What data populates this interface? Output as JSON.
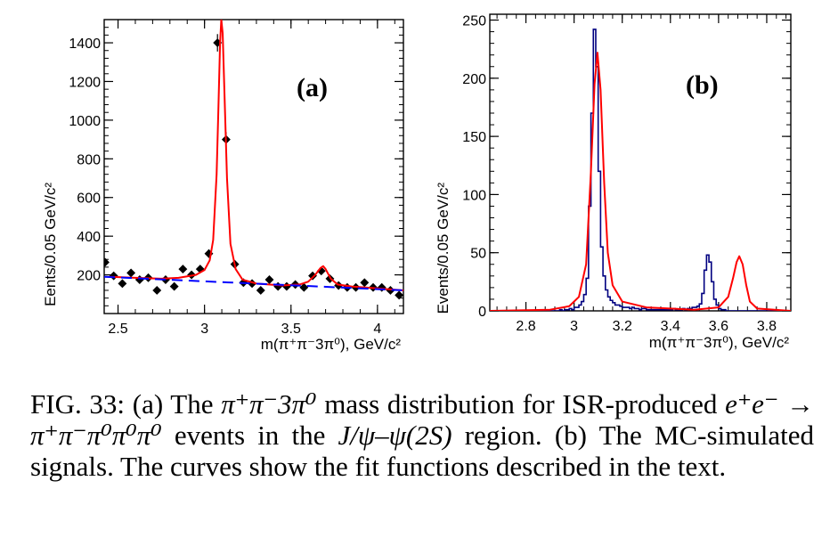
{
  "figure": {
    "panels": [
      {
        "tag": "(a)",
        "ylabel": "Eents/0.05 GeV/c²",
        "xlabel": "m(π⁺π⁻3π⁰), GeV/c²"
      },
      {
        "tag": "(b)",
        "ylabel": "Events/0.05 GeV/c²",
        "xlabel": "m(π⁺π⁻3π⁰), GeV/c²"
      }
    ]
  },
  "chart_data": [
    {
      "type": "scatter",
      "panel": "(a)",
      "title": "(a)",
      "xlabel": "m(π⁺π⁻3π⁰), GeV/c²",
      "ylabel": "Eents/0.05 GeV/c²",
      "xlim": [
        2.42,
        4.15
      ],
      "ylim": [
        0,
        1520
      ],
      "x_ticks": [
        2.5,
        3,
        3.5,
        4
      ],
      "y_ticks": [
        200,
        400,
        600,
        800,
        1000,
        1200,
        1400
      ],
      "grid": false,
      "series": [
        {
          "kind": "points_with_errors",
          "color": "#000000",
          "x": [
            2.425,
            2.475,
            2.525,
            2.575,
            2.625,
            2.675,
            2.725,
            2.775,
            2.825,
            2.875,
            2.925,
            2.975,
            3.025,
            3.075,
            3.125,
            3.175,
            3.225,
            3.275,
            3.325,
            3.375,
            3.425,
            3.475,
            3.525,
            3.575,
            3.625,
            3.675,
            3.725,
            3.775,
            3.825,
            3.875,
            3.925,
            3.975,
            4.025,
            4.075,
            4.125
          ],
          "y": [
            265,
            195,
            155,
            210,
            175,
            185,
            120,
            175,
            140,
            230,
            200,
            230,
            310,
            1400,
            900,
            255,
            160,
            155,
            120,
            175,
            140,
            140,
            150,
            135,
            195,
            220,
            180,
            145,
            135,
            135,
            160,
            135,
            135,
            120,
            95
          ],
          "err": [
            20,
            18,
            16,
            18,
            17,
            17,
            14,
            17,
            15,
            19,
            18,
            19,
            22,
            45,
            38,
            20,
            16,
            16,
            14,
            17,
            15,
            15,
            15,
            14,
            18,
            19,
            17,
            15,
            15,
            15,
            16,
            15,
            15,
            14,
            12
          ]
        },
        {
          "kind": "fit_curve",
          "color": "#ff0000",
          "x": [
            2.45,
            2.6,
            2.75,
            2.85,
            2.95,
            3.0,
            3.03,
            3.05,
            3.07,
            3.08,
            3.09,
            3.097,
            3.105,
            3.115,
            3.13,
            3.15,
            3.18,
            3.22,
            3.3,
            3.45,
            3.55,
            3.6,
            3.64,
            3.67,
            3.686,
            3.7,
            3.73,
            3.77,
            3.85,
            4.0,
            4.15
          ],
          "y": [
            190,
            185,
            180,
            185,
            200,
            225,
            275,
            380,
            720,
            1050,
            1400,
            1520,
            1450,
            1150,
            700,
            360,
            230,
            175,
            155,
            145,
            150,
            165,
            200,
            235,
            245,
            230,
            180,
            150,
            140,
            130,
            120
          ]
        },
        {
          "kind": "background",
          "color": "#0000ff",
          "style": "dashed",
          "x": [
            2.42,
            4.15
          ],
          "y": [
            190,
            120
          ]
        }
      ]
    },
    {
      "type": "line",
      "panel": "(b)",
      "title": "(b)",
      "xlabel": "m(π⁺π⁻3π⁰), GeV/c²",
      "ylabel": "Events/0.05 GeV/c²",
      "xlim": [
        2.65,
        3.9
      ],
      "ylim": [
        0,
        255
      ],
      "x_ticks": [
        2.8,
        3,
        3.2,
        3.4,
        3.6,
        3.8
      ],
      "y_ticks": [
        0,
        50,
        100,
        150,
        200,
        250
      ],
      "grid": false,
      "series": [
        {
          "kind": "histogram",
          "color": "#000080",
          "bin_width": 0.01,
          "x_start": 2.65,
          "values": [
            0,
            0,
            0,
            0,
            0,
            0,
            0,
            0,
            0,
            0,
            0,
            0,
            0,
            0,
            0,
            0,
            0,
            0,
            0,
            0,
            0,
            0,
            0,
            0,
            0,
            0,
            0,
            0,
            0,
            1,
            0,
            1,
            1,
            2,
            1,
            3,
            3,
            5,
            8,
            14,
            28,
            90,
            170,
            242,
            210,
            120,
            55,
            30,
            18,
            12,
            9,
            7,
            5,
            5,
            4,
            3,
            3,
            3,
            2,
            3,
            2,
            2,
            1,
            2,
            2,
            1,
            1,
            1,
            1,
            1,
            1,
            1,
            1,
            1,
            1,
            1,
            2,
            1,
            1,
            1,
            2,
            1,
            2,
            2,
            3,
            3,
            4,
            6,
            15,
            35,
            48,
            42,
            25,
            10,
            5,
            2,
            1,
            1,
            0,
            0,
            0,
            0,
            0,
            0,
            0,
            0,
            0,
            0,
            0,
            0,
            0,
            0,
            0,
            0,
            0,
            0,
            0,
            0,
            0,
            0,
            0,
            0,
            0,
            0,
            0
          ]
        },
        {
          "kind": "fit_curve",
          "color": "#ff0000",
          "x": [
            2.65,
            2.9,
            2.98,
            3.02,
            3.05,
            3.07,
            3.085,
            3.097,
            3.11,
            3.125,
            3.14,
            3.16,
            3.2,
            3.3,
            3.5,
            3.6,
            3.64,
            3.66,
            3.675,
            3.686,
            3.7,
            3.715,
            3.73,
            3.76,
            3.9
          ],
          "y": [
            0,
            1,
            4,
            12,
            40,
            120,
            195,
            222,
            190,
            110,
            50,
            22,
            8,
            3,
            1,
            3,
            12,
            28,
            42,
            47,
            40,
            22,
            8,
            2,
            0
          ]
        }
      ]
    }
  ],
  "caption": {
    "fig_label": "FIG. 33:",
    "part_a": "(a) The",
    "mass_formula": "π⁺π⁻3π⁰",
    "rest_line1": "mass distribution for ISR-produced",
    "reaction": "e⁺e⁻ → π⁺π⁻π⁰π⁰π⁰",
    "events_in_the": "events in the",
    "region_formula": "J/ψ–ψ(2S)",
    "rest_line2": "region. (b) The MC-simulated signals. The curves show the fit functions described in the text."
  },
  "colors": {
    "data_points": "#000000",
    "fit": "#ff0000",
    "background_fit": "#0000ff",
    "histogram": "#000080"
  }
}
